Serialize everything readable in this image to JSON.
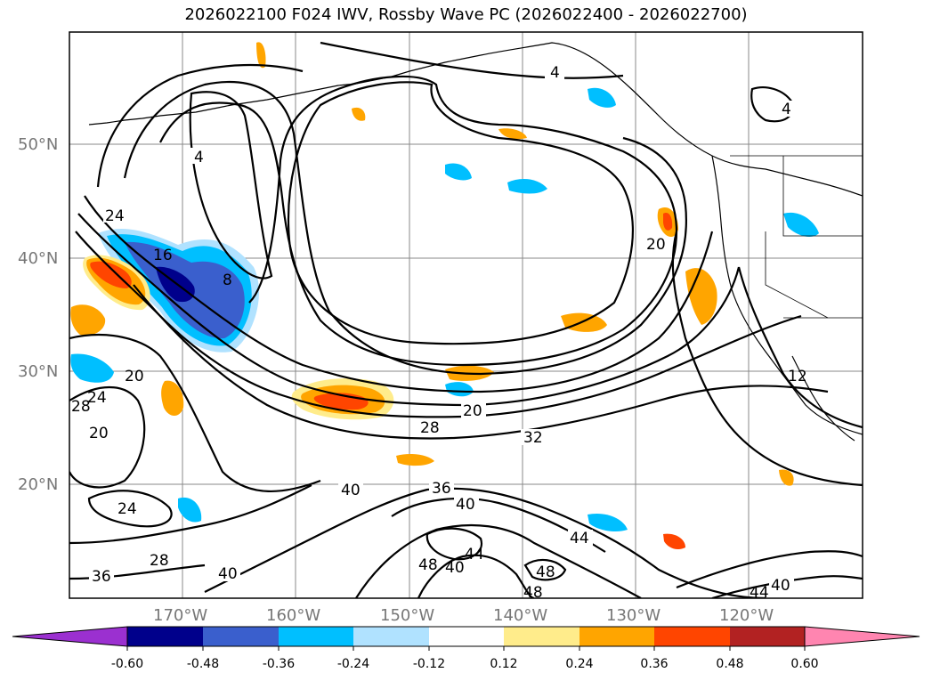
{
  "title": "2026022100 F024 IWV, Rossby Wave PC (2026022400 - 2026022700)",
  "lat_labels": [
    "50°N",
    "40°N",
    "30°N",
    "20°N"
  ],
  "lon_labels": [
    "170°W",
    "160°W",
    "150°W",
    "140°W",
    "130°W",
    "120°W"
  ],
  "contour_labels": [
    "4",
    "4",
    "4",
    "24",
    "16",
    "8",
    "20",
    "28",
    "24",
    "20",
    "20",
    "28",
    "32",
    "40",
    "36",
    "40",
    "24",
    "28",
    "36",
    "40",
    "40",
    "48",
    "44",
    "44",
    "48",
    "48",
    "40",
    "44",
    "12",
    "20"
  ],
  "colorbar": {
    "ticks": [
      "-0.60",
      "-0.48",
      "-0.36",
      "-0.24",
      "-0.12",
      "0.12",
      "0.24",
      "0.36",
      "0.48",
      "0.60"
    ],
    "colors": [
      "#9b30d0",
      "#00008b",
      "#3a5fcd",
      "#00bfff",
      "#b0e2ff",
      "#ffffff",
      "#ffec8b",
      "#ffa500",
      "#ff4500",
      "#b22222",
      "#ff85b0"
    ]
  },
  "chart_data": {
    "type": "contour-map",
    "title": "2026022100 F024 IWV, Rossby Wave PC (2026022400 - 2026022700)",
    "field_contours": "IWV",
    "field_shaded": "Rossby Wave PC",
    "lon_range": [
      "180°W",
      "110°W"
    ],
    "lat_range": [
      "10°N",
      "60°N"
    ],
    "colorbar_levels": [
      -0.6,
      -0.48,
      -0.36,
      -0.24,
      -0.12,
      0.12,
      0.24,
      0.36,
      0.48,
      0.6
    ]
  }
}
